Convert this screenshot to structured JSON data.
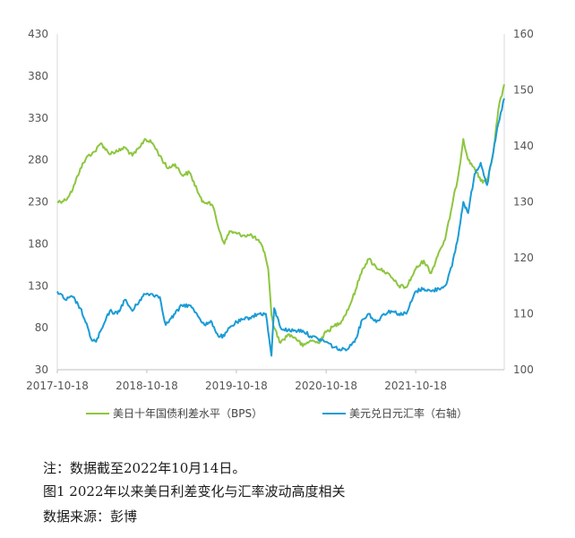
{
  "chart_data": {
    "type": "line",
    "x_tick_labels": [
      "2017-10-18",
      "2018-10-18",
      "2019-10-18",
      "2020-10-18",
      "2021-10-18"
    ],
    "x_range": [
      "2017-10-18",
      "2022-10-14"
    ],
    "y_left": {
      "range": [
        30,
        430
      ],
      "ticks": [
        30,
        80,
        130,
        180,
        230,
        280,
        330,
        380,
        430
      ]
    },
    "y_right": {
      "range": [
        100,
        160
      ],
      "ticks": [
        100,
        110,
        120,
        130,
        140,
        150,
        160
      ]
    },
    "grid": false,
    "legend_position": "bottom",
    "series": [
      {
        "name": "美日十年国债利差水平（BPS）",
        "axis": "left",
        "color": "#8DC63F",
        "points": [
          [
            "2017-10-18",
            230
          ],
          [
            "2017-11-20",
            232
          ],
          [
            "2017-12-20",
            245
          ],
          [
            "2018-01-20",
            270
          ],
          [
            "2018-02-20",
            285
          ],
          [
            "2018-03-20",
            290
          ],
          [
            "2018-04-15",
            300
          ],
          [
            "2018-05-15",
            288
          ],
          [
            "2018-06-20",
            290
          ],
          [
            "2018-07-20",
            295
          ],
          [
            "2018-08-20",
            285
          ],
          [
            "2018-09-20",
            295
          ],
          [
            "2018-10-10",
            305
          ],
          [
            "2018-11-10",
            300
          ],
          [
            "2018-12-10",
            285
          ],
          [
            "2019-01-10",
            270
          ],
          [
            "2019-02-10",
            275
          ],
          [
            "2019-03-10",
            262
          ],
          [
            "2019-04-10",
            265
          ],
          [
            "2019-05-10",
            245
          ],
          [
            "2019-05-31",
            230
          ],
          [
            "2019-06-30",
            230
          ],
          [
            "2019-07-20",
            220
          ],
          [
            "2019-08-05",
            200
          ],
          [
            "2019-08-30",
            180
          ],
          [
            "2019-09-20",
            195
          ],
          [
            "2019-10-20",
            192
          ],
          [
            "2019-11-20",
            190
          ],
          [
            "2019-12-20",
            190
          ],
          [
            "2020-01-20",
            182
          ],
          [
            "2020-02-10",
            170
          ],
          [
            "2020-02-25",
            150
          ],
          [
            "2020-03-09",
            95
          ],
          [
            "2020-03-20",
            80
          ],
          [
            "2020-04-15",
            62
          ],
          [
            "2020-05-15",
            72
          ],
          [
            "2020-06-15",
            68
          ],
          [
            "2020-07-15",
            58
          ],
          [
            "2020-08-15",
            65
          ],
          [
            "2020-09-15",
            62
          ],
          [
            "2020-10-18",
            75
          ],
          [
            "2020-11-20",
            82
          ],
          [
            "2020-12-20",
            88
          ],
          [
            "2021-01-20",
            105
          ],
          [
            "2021-02-15",
            125
          ],
          [
            "2021-03-15",
            150
          ],
          [
            "2021-04-10",
            162
          ],
          [
            "2021-05-10",
            152
          ],
          [
            "2021-06-10",
            148
          ],
          [
            "2021-07-10",
            140
          ],
          [
            "2021-08-10",
            130
          ],
          [
            "2021-09-10",
            128
          ],
          [
            "2021-10-18",
            150
          ],
          [
            "2021-11-20",
            160
          ],
          [
            "2021-12-20",
            145
          ],
          [
            "2022-01-20",
            170
          ],
          [
            "2022-02-15",
            185
          ],
          [
            "2022-03-15",
            225
          ],
          [
            "2022-04-10",
            262
          ],
          [
            "2022-04-30",
            305
          ],
          [
            "2022-05-20",
            280
          ],
          [
            "2022-06-15",
            270
          ],
          [
            "2022-07-10",
            255
          ],
          [
            "2022-08-05",
            255
          ],
          [
            "2022-08-31",
            290
          ],
          [
            "2022-09-20",
            340
          ],
          [
            "2022-10-14",
            370
          ]
        ]
      },
      {
        "name": "美元兑日元汇率（右轴）",
        "axis": "right",
        "color": "#1A9BD6",
        "points": [
          [
            "2017-10-18",
            114
          ],
          [
            "2017-11-20",
            112.5
          ],
          [
            "2017-12-20",
            113
          ],
          [
            "2018-01-20",
            111
          ],
          [
            "2018-02-10",
            108.5
          ],
          [
            "2018-03-05",
            105.5
          ],
          [
            "2018-03-25",
            105
          ],
          [
            "2018-04-20",
            107.5
          ],
          [
            "2018-05-20",
            110.5
          ],
          [
            "2018-06-20",
            110
          ],
          [
            "2018-07-20",
            112.5
          ],
          [
            "2018-08-20",
            110.5
          ],
          [
            "2018-09-20",
            112.5
          ],
          [
            "2018-10-10",
            113.5
          ],
          [
            "2018-11-10",
            113.5
          ],
          [
            "2018-12-10",
            113
          ],
          [
            "2019-01-03",
            108
          ],
          [
            "2019-02-10",
            110
          ],
          [
            "2019-03-10",
            111.5
          ],
          [
            "2019-04-10",
            111.5
          ],
          [
            "2019-05-10",
            110
          ],
          [
            "2019-06-10",
            108
          ],
          [
            "2019-07-10",
            108.5
          ],
          [
            "2019-08-05",
            106
          ],
          [
            "2019-08-30",
            106
          ],
          [
            "2019-09-20",
            107.5
          ],
          [
            "2019-10-20",
            108.5
          ],
          [
            "2019-11-20",
            109
          ],
          [
            "2019-12-20",
            109.5
          ],
          [
            "2020-01-20",
            110
          ],
          [
            "2020-02-15",
            110
          ],
          [
            "2020-03-09",
            102.5
          ],
          [
            "2020-03-20",
            111
          ],
          [
            "2020-04-15",
            107.5
          ],
          [
            "2020-05-15",
            107
          ],
          [
            "2020-06-15",
            107
          ],
          [
            "2020-07-15",
            107
          ],
          [
            "2020-08-15",
            106
          ],
          [
            "2020-09-15",
            105.5
          ],
          [
            "2020-10-18",
            105
          ],
          [
            "2020-11-20",
            104
          ],
          [
            "2020-12-20",
            103.5
          ],
          [
            "2021-01-20",
            104
          ],
          [
            "2021-02-15",
            105.5
          ],
          [
            "2021-03-15",
            109
          ],
          [
            "2021-04-10",
            110
          ],
          [
            "2021-05-10",
            108.5
          ],
          [
            "2021-06-10",
            110
          ],
          [
            "2021-07-10",
            110.5
          ],
          [
            "2021-08-10",
            110
          ],
          [
            "2021-09-10",
            110
          ],
          [
            "2021-10-18",
            114
          ],
          [
            "2021-11-20",
            114.5
          ],
          [
            "2021-12-20",
            114
          ],
          [
            "2022-01-20",
            114.5
          ],
          [
            "2022-02-15",
            115
          ],
          [
            "2022-03-15",
            118.5
          ],
          [
            "2022-04-10",
            124
          ],
          [
            "2022-04-30",
            130
          ],
          [
            "2022-05-20",
            128
          ],
          [
            "2022-06-15",
            135
          ],
          [
            "2022-07-10",
            137
          ],
          [
            "2022-08-05",
            133
          ],
          [
            "2022-08-31",
            139
          ],
          [
            "2022-09-20",
            144
          ],
          [
            "2022-10-14",
            148.5
          ]
        ]
      }
    ]
  },
  "captions": {
    "note": "注：数据截至2022年10月14日。",
    "figure": "图1  2022年以来美日利差变化与汇率波动高度相关",
    "source": "数据来源：彭博"
  }
}
